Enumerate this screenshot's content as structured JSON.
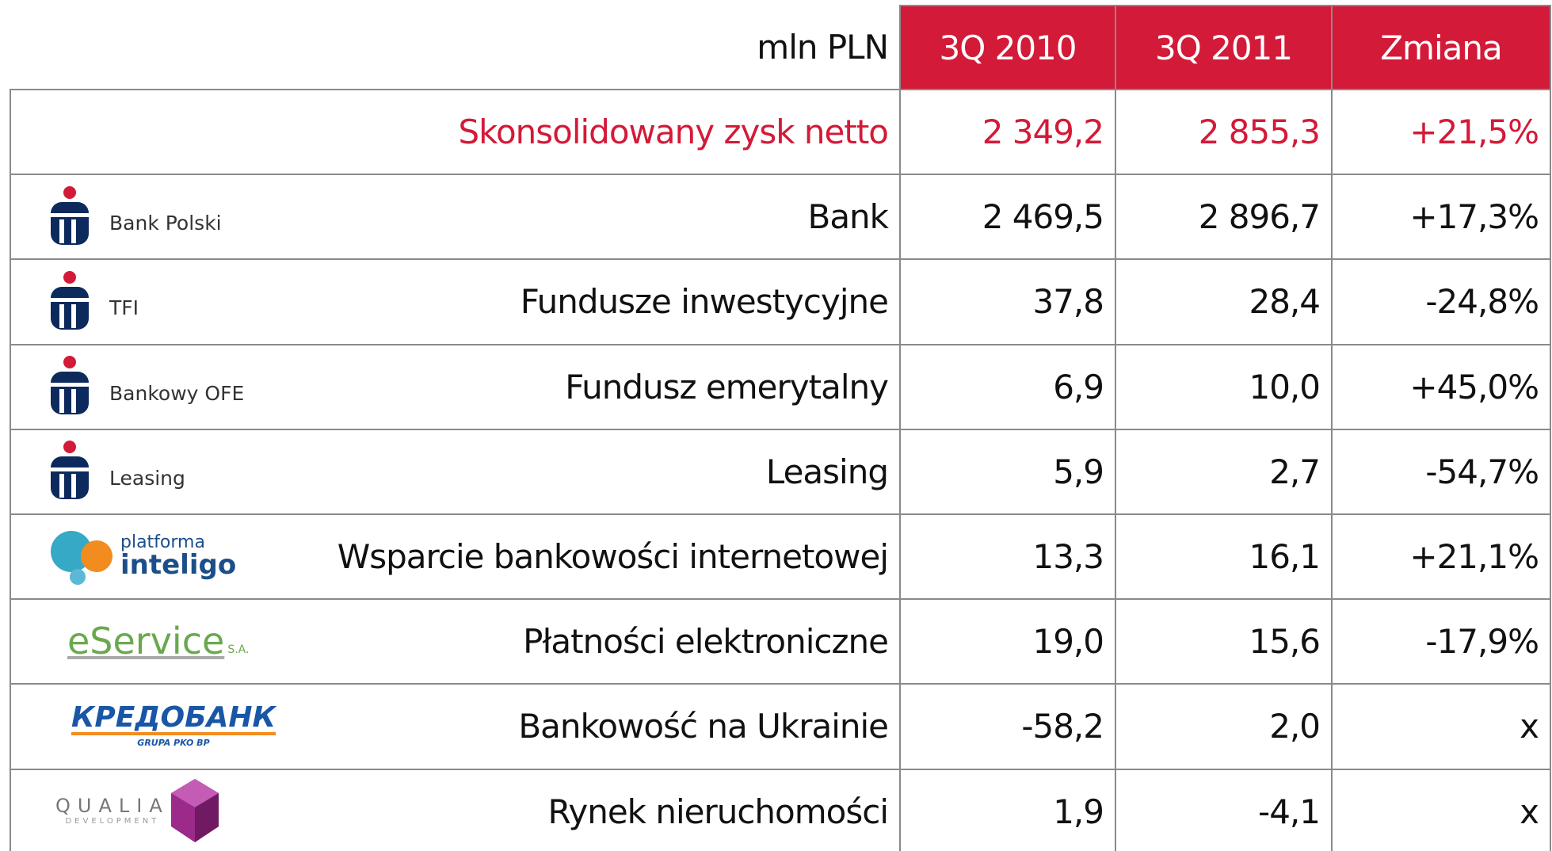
{
  "header": {
    "unit": "mln PLN",
    "columns": [
      "3Q 2010",
      "3Q 2011",
      "Zmiana"
    ]
  },
  "total": {
    "label": "Skonsolidowany zysk netto",
    "values": [
      "2 349,2",
      "2 855,3",
      "+21,5%"
    ]
  },
  "rows": [
    {
      "logo": [
        "Bank Polski"
      ],
      "label": "Bank",
      "values": [
        "2 469,5",
        "2 896,7",
        "+17,3%"
      ]
    },
    {
      "logo": [
        "TFI"
      ],
      "label": "Fundusze inwestycyjne",
      "values": [
        "37,8",
        "28,4",
        "-24,8%"
      ]
    },
    {
      "logo": [
        "Bankowy OFE"
      ],
      "label": "Fundusz emerytalny",
      "values": [
        "6,9",
        "10,0",
        "+45,0%"
      ]
    },
    {
      "logo": [
        "Leasing"
      ],
      "label": "Leasing",
      "values": [
        "5,9",
        "2,7",
        "-54,7%"
      ]
    },
    {
      "logo": [
        "platforma",
        "inteligo"
      ],
      "label": "Wsparcie bankowości internetowej",
      "values": [
        "13,3",
        "16,1",
        "+21,1%"
      ]
    },
    {
      "logo": [
        "eService",
        "S.A."
      ],
      "label": "Płatności elektroniczne",
      "values": [
        "19,0",
        "15,6",
        "-17,9%"
      ]
    },
    {
      "logo": [
        "КРЕДОБАНК",
        "GRUPA PKO BP"
      ],
      "label": "Bankowość na Ukrainie",
      "values": [
        "-58,2",
        "2,0",
        "x"
      ]
    },
    {
      "logo": [
        "QUALIA",
        "DEVELOPMENT"
      ],
      "label": "Rynek nieruchomości",
      "values": [
        "1,9",
        "-4,1",
        "x"
      ]
    }
  ]
}
